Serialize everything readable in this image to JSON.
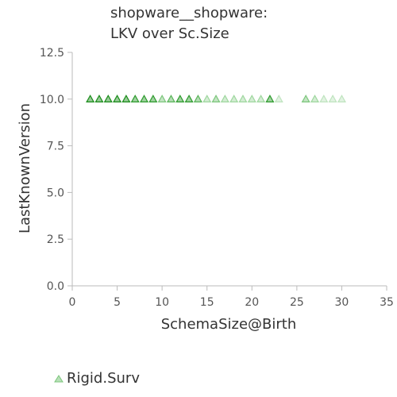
{
  "chart_data": {
    "type": "scatter",
    "title": "shopware__shopware:",
    "subtitle": "LKV over Sc.Size",
    "xlabel": "SchemaSize@Birth",
    "ylabel": "LastKnownVersion",
    "xlim": [
      0,
      35
    ],
    "ylim": [
      0,
      12.5
    ],
    "xticks": [
      "0",
      "5",
      "10",
      "15",
      "20",
      "25",
      "30",
      "35"
    ],
    "yticks": [
      "0.0",
      "2.5",
      "5.0",
      "7.5",
      "10.0",
      "12.5"
    ],
    "grid": false,
    "legend_placement": "bottom-left",
    "series": [
      {
        "name": "Rigid.Surv",
        "marker": "triangle",
        "color": "#7cc67c",
        "points": [
          {
            "x": 2,
            "y": 10,
            "shade": "#1a8c1a"
          },
          {
            "x": 3,
            "y": 10,
            "shade": "#1a8c1a"
          },
          {
            "x": 4,
            "y": 10,
            "shade": "#1a8c1a"
          },
          {
            "x": 5,
            "y": 10,
            "shade": "#1a8c1a"
          },
          {
            "x": 6,
            "y": 10,
            "shade": "#1a8c1a"
          },
          {
            "x": 7,
            "y": 10,
            "shade": "#2e9b2e"
          },
          {
            "x": 8,
            "y": 10,
            "shade": "#2e9b2e"
          },
          {
            "x": 9,
            "y": 10,
            "shade": "#2e9b2e"
          },
          {
            "x": 10,
            "y": 10,
            "shade": "#7cc67c"
          },
          {
            "x": 11,
            "y": 10,
            "shade": "#5ab45a"
          },
          {
            "x": 12,
            "y": 10,
            "shade": "#2e9b2e"
          },
          {
            "x": 13,
            "y": 10,
            "shade": "#2e9b2e"
          },
          {
            "x": 14,
            "y": 10,
            "shade": "#5ab45a"
          },
          {
            "x": 15,
            "y": 10,
            "shade": "#9fd79f"
          },
          {
            "x": 16,
            "y": 10,
            "shade": "#7cc67c"
          },
          {
            "x": 17,
            "y": 10,
            "shade": "#9fd79f"
          },
          {
            "x": 18,
            "y": 10,
            "shade": "#9fd79f"
          },
          {
            "x": 19,
            "y": 10,
            "shade": "#9fd79f"
          },
          {
            "x": 20,
            "y": 10,
            "shade": "#9fd79f"
          },
          {
            "x": 21,
            "y": 10,
            "shade": "#9fd79f"
          },
          {
            "x": 22,
            "y": 10,
            "shade": "#2e9b2e"
          },
          {
            "x": 23,
            "y": 10,
            "shade": "#bfe4bf"
          },
          {
            "x": 26,
            "y": 10,
            "shade": "#7cc67c"
          },
          {
            "x": 27,
            "y": 10,
            "shade": "#9fd79f"
          },
          {
            "x": 28,
            "y": 10,
            "shade": "#bfe4bf"
          },
          {
            "x": 29,
            "y": 10,
            "shade": "#bfe4bf"
          },
          {
            "x": 30,
            "y": 10,
            "shade": "#bfe4bf"
          }
        ]
      }
    ]
  }
}
